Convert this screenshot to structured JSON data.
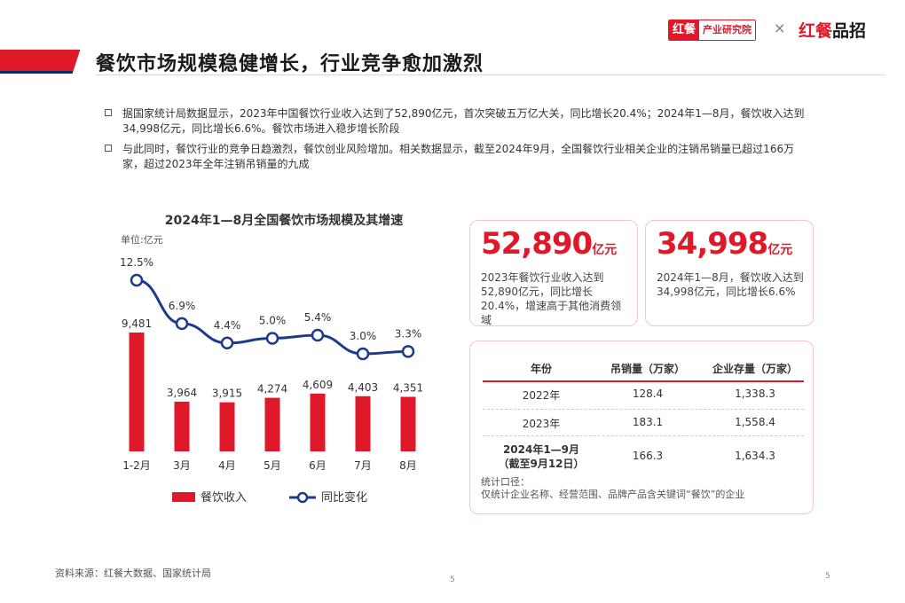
{
  "header": {
    "title": "餐饮市场规模稳健增长，行业竞争愈加激烈",
    "logo_left_a": "红餐",
    "logo_left_b": "产业研究院",
    "times": "×",
    "logo_right_a": "红餐",
    "logo_right_b": "品招"
  },
  "bullets": [
    "据国家统计局数据显示，2023年中国餐饮行业收入达到了52,890亿元，首次突破五万亿大关，同比增长20.4%；2024年1—8月，餐饮收入达到34,998亿元，同比增长6.6%。餐饮市场进入稳步增长阶段",
    "与此同时，餐饮行业的竞争日趋激烈，餐饮创业风险增加。相关数据显示，截至2024年9月，全国餐饮行业相关企业的注销吊销量已超过166万家，超过2023年全年注销吊销量的九成"
  ],
  "chart_data": {
    "type": "bar",
    "title": "2024年1—8月全国餐饮市场规模及其增速",
    "unit": "单位:亿元",
    "categories": [
      "1-2月",
      "3月",
      "4月",
      "5月",
      "6月",
      "7月",
      "8月"
    ],
    "series": [
      {
        "name": "餐饮收入",
        "type": "bar",
        "values": [
          9481,
          3964,
          3915,
          4274,
          4609,
          4403,
          4351
        ],
        "labels": [
          "9,481",
          "3,964",
          "3,915",
          "4,274",
          "4,609",
          "4,403",
          "4,351"
        ],
        "color": "#e0192a"
      },
      {
        "name": "同比变化",
        "type": "line",
        "values": [
          12.5,
          6.9,
          4.4,
          5.0,
          5.4,
          3.0,
          3.3
        ],
        "labels": [
          "12.5%",
          "6.9%",
          "4.4%",
          "5.0%",
          "5.4%",
          "3.0%",
          "3.3%"
        ],
        "color": "#1f3a8a"
      }
    ],
    "legend": "bottom"
  },
  "stats": [
    {
      "value": "52,890",
      "unit": "亿元",
      "desc": "2023年餐饮行业收入达到52,890亿元，同比增长20.4%，增速高于其他消费领域"
    },
    {
      "value": "34,998",
      "unit": "亿元",
      "desc": "2024年1—8月，餐饮收入达到34,998亿元，同比增长6.6%"
    }
  ],
  "table": {
    "headers": [
      "年份",
      "吊销量（万家）",
      "企业存量（万家）"
    ],
    "rows": [
      [
        "2022年",
        "128.4",
        "1,338.3"
      ],
      [
        "2023年",
        "183.1",
        "1,558.4"
      ],
      [
        "2024年1—9月\n（截至9月12日）",
        "166.3",
        "1,634.3"
      ]
    ],
    "note_title": "统计口径：",
    "note": "仅统计企业名称、经营范围、品牌产品含关键词“餐饮”的企业"
  },
  "footer": {
    "source": "资料来源：红餐大数据、国家统计局",
    "page_center": "5",
    "page_right": "5"
  },
  "colors": {
    "accent": "#e0192a",
    "navy": "#1f3a8a"
  }
}
